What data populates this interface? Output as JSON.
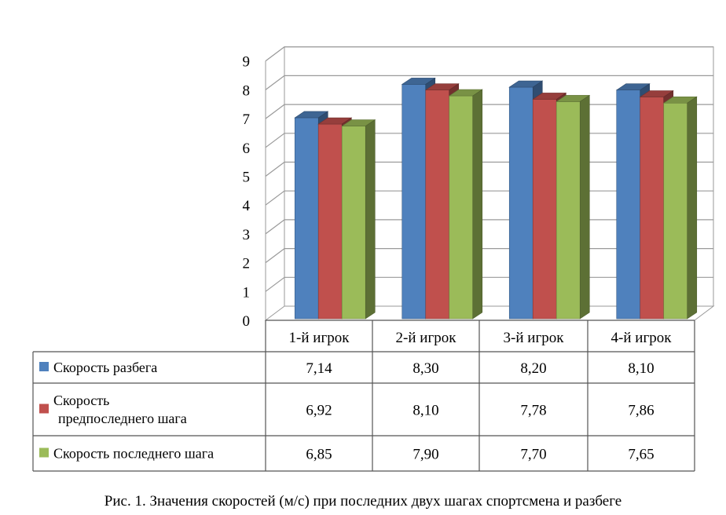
{
  "chart_data": {
    "type": "bar",
    "categories": [
      "1-й игрок",
      "2-й игрок",
      "3-й игрок",
      "4-й игрок"
    ],
    "series": [
      {
        "name": "Скорость разбега",
        "color": "#4f81bd",
        "values": [
          7.14,
          8.3,
          8.2,
          8.1
        ],
        "labels": [
          "7,14",
          "8,30",
          "8,20",
          "8,10"
        ]
      },
      {
        "name": "Скорость предпоследнего шага",
        "name_lines": [
          "Скорость",
          "предпоследнего шага"
        ],
        "color": "#c0504d",
        "values": [
          6.92,
          8.1,
          7.78,
          7.86
        ],
        "labels": [
          "6,92",
          "8,10",
          "7,78",
          "7,86"
        ]
      },
      {
        "name": "Скорость последнего шага",
        "color": "#9bbb59",
        "values": [
          6.85,
          7.9,
          7.7,
          7.65
        ],
        "labels": [
          "6,85",
          "7,90",
          "7,70",
          "7,65"
        ]
      }
    ],
    "ylim": [
      0,
      9
    ],
    "yticks": [
      0,
      1,
      2,
      3,
      4,
      5,
      6,
      7,
      8,
      9
    ],
    "grid": true,
    "legend": "data table below chart",
    "style": "3d clustered column with data table"
  },
  "caption": "Рис. 1. Значения скоростей (м/с) при последних двух шагах спортсмена и разбеге"
}
